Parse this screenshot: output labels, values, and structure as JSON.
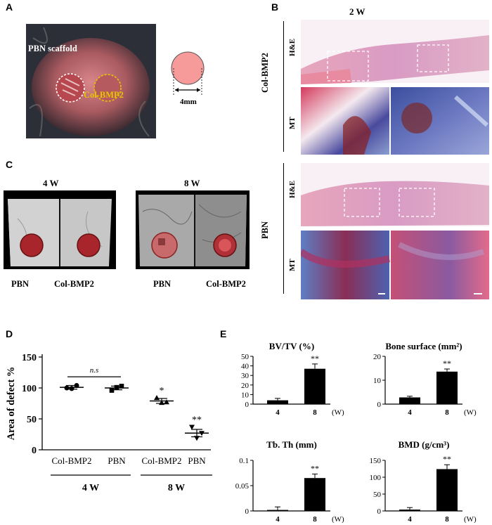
{
  "panels": {
    "A": "A",
    "B": "B",
    "C": "C",
    "D": "D",
    "E": "E"
  },
  "panel_a": {
    "scaffold_label": "PBN scaffold",
    "colbmp2_label": "Col-BMP2",
    "size_label": "4mm",
    "colors": {
      "scaffold_circle": "#ffffff",
      "colbmp2_circle": "#e8c400",
      "disc": "#f79a9a"
    }
  },
  "panel_b": {
    "timepoint": "2 W",
    "groups": [
      "Col-BMP2",
      "PBN"
    ],
    "stains": [
      "H&E",
      "MT"
    ]
  },
  "panel_c": {
    "timepoints": [
      "4 W",
      "8 W"
    ],
    "labels_4w": [
      "PBN",
      "Col-BMP2"
    ],
    "labels_8w": [
      "PBN",
      "Col-BMP2"
    ],
    "colors": {
      "defect": "#a8262b"
    }
  },
  "chart_data": [
    {
      "id": "D",
      "type": "scatter",
      "ylabel": "Area of defect %",
      "ylim": [
        0,
        150
      ],
      "yticks": [
        "0",
        "50",
        "100",
        "150"
      ],
      "categories": [
        "Col-BMP2",
        "PBN",
        "Col-BMP2",
        "PBN"
      ],
      "group_labels": [
        "4 W",
        "8 W"
      ],
      "means": [
        101,
        100,
        79,
        27
      ],
      "errors": [
        3,
        3,
        4,
        6
      ],
      "points": [
        [
          100,
          104,
          99
        ],
        [
          96,
          103,
          101
        ],
        [
          84,
          77,
          76
        ],
        [
          37,
          27,
          19
        ]
      ],
      "annotations": {
        "ns": "n.s",
        "sig": [
          "",
          "",
          "*",
          "**"
        ]
      }
    },
    {
      "id": "E1",
      "type": "bar",
      "title": "BV/TV (%)",
      "categories": [
        "4",
        "8"
      ],
      "values": [
        4,
        37
      ],
      "errors": [
        2,
        5
      ],
      "ylim": [
        0,
        50
      ],
      "yticks": [
        "0",
        "10",
        "20",
        "30",
        "40",
        "50"
      ],
      "sig": "**",
      "unit": "(W)"
    },
    {
      "id": "E2",
      "type": "bar",
      "title": "Bone surface (mm²)",
      "categories": [
        "4",
        "8"
      ],
      "values": [
        2.8,
        13.6
      ],
      "errors": [
        0.5,
        1.1
      ],
      "ylim": [
        0,
        20
      ],
      "yticks": [
        "0",
        "10",
        "20"
      ],
      "sig": "**",
      "unit": "(W)"
    },
    {
      "id": "E3",
      "type": "bar",
      "title": "Tb. Th (mm)",
      "categories": [
        "4",
        "8"
      ],
      "values": [
        0.002,
        0.065
      ],
      "errors": [
        0.006,
        0.008
      ],
      "ylim": [
        0,
        0.1
      ],
      "yticks": [
        "0",
        "0.05",
        "0.1"
      ],
      "sig": "**",
      "unit": "(W)"
    },
    {
      "id": "E4",
      "type": "bar",
      "title": "BMD (g/cm³)",
      "categories": [
        "4",
        "8"
      ],
      "values": [
        4,
        124
      ],
      "errors": [
        6,
        13
      ],
      "ylim": [
        0,
        150
      ],
      "yticks": [
        "0",
        "50",
        "100",
        "150"
      ],
      "sig": "**",
      "unit": "(W)"
    }
  ]
}
